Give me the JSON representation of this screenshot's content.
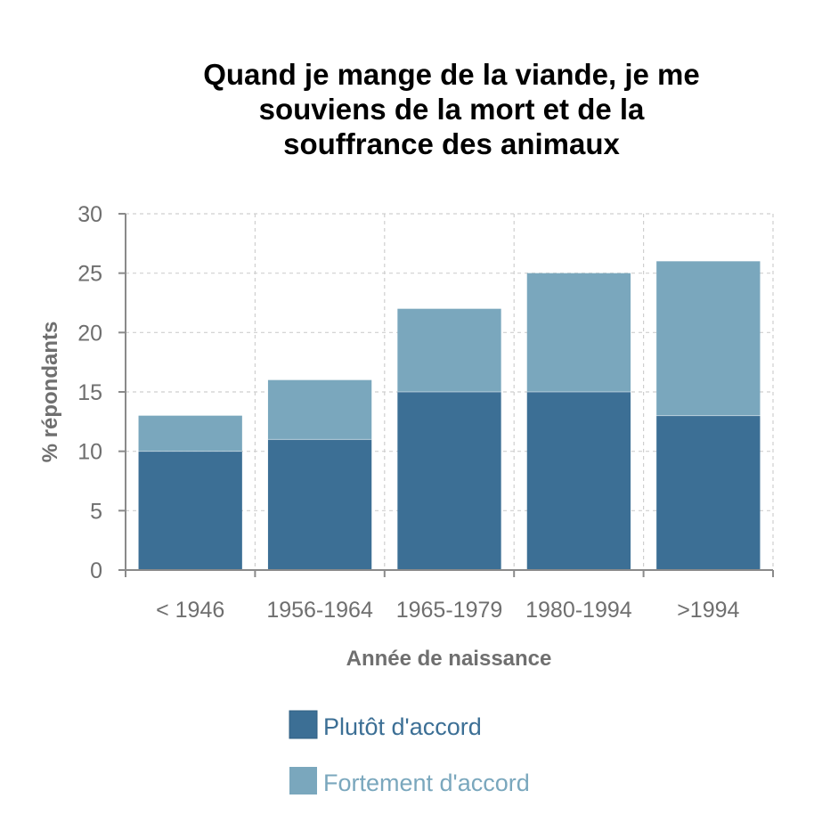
{
  "chart_data": {
    "type": "bar",
    "stacked": true,
    "title_lines": [
      "Quand je mange de la viande, je me",
      "souviens de la mort et de la",
      "souffrance des animaux"
    ],
    "xlabel": "Année de naissance",
    "ylabel": "% répondants",
    "ylim": [
      0,
      30
    ],
    "yticks": [
      0,
      5,
      10,
      15,
      20,
      25,
      30
    ],
    "grid": true,
    "categories": [
      "< 1946",
      "1956-1964",
      "1965-1979",
      "1980-1994",
      ">1994"
    ],
    "series": [
      {
        "name": "Plutôt d'accord",
        "color": "#3c6f95",
        "values": [
          10,
          11,
          15,
          15,
          13
        ]
      },
      {
        "name": "Fortement d'accord",
        "color": "#7aa7bd",
        "values": [
          3,
          5,
          7,
          10,
          13
        ]
      }
    ],
    "legend_position": "bottom-center"
  }
}
